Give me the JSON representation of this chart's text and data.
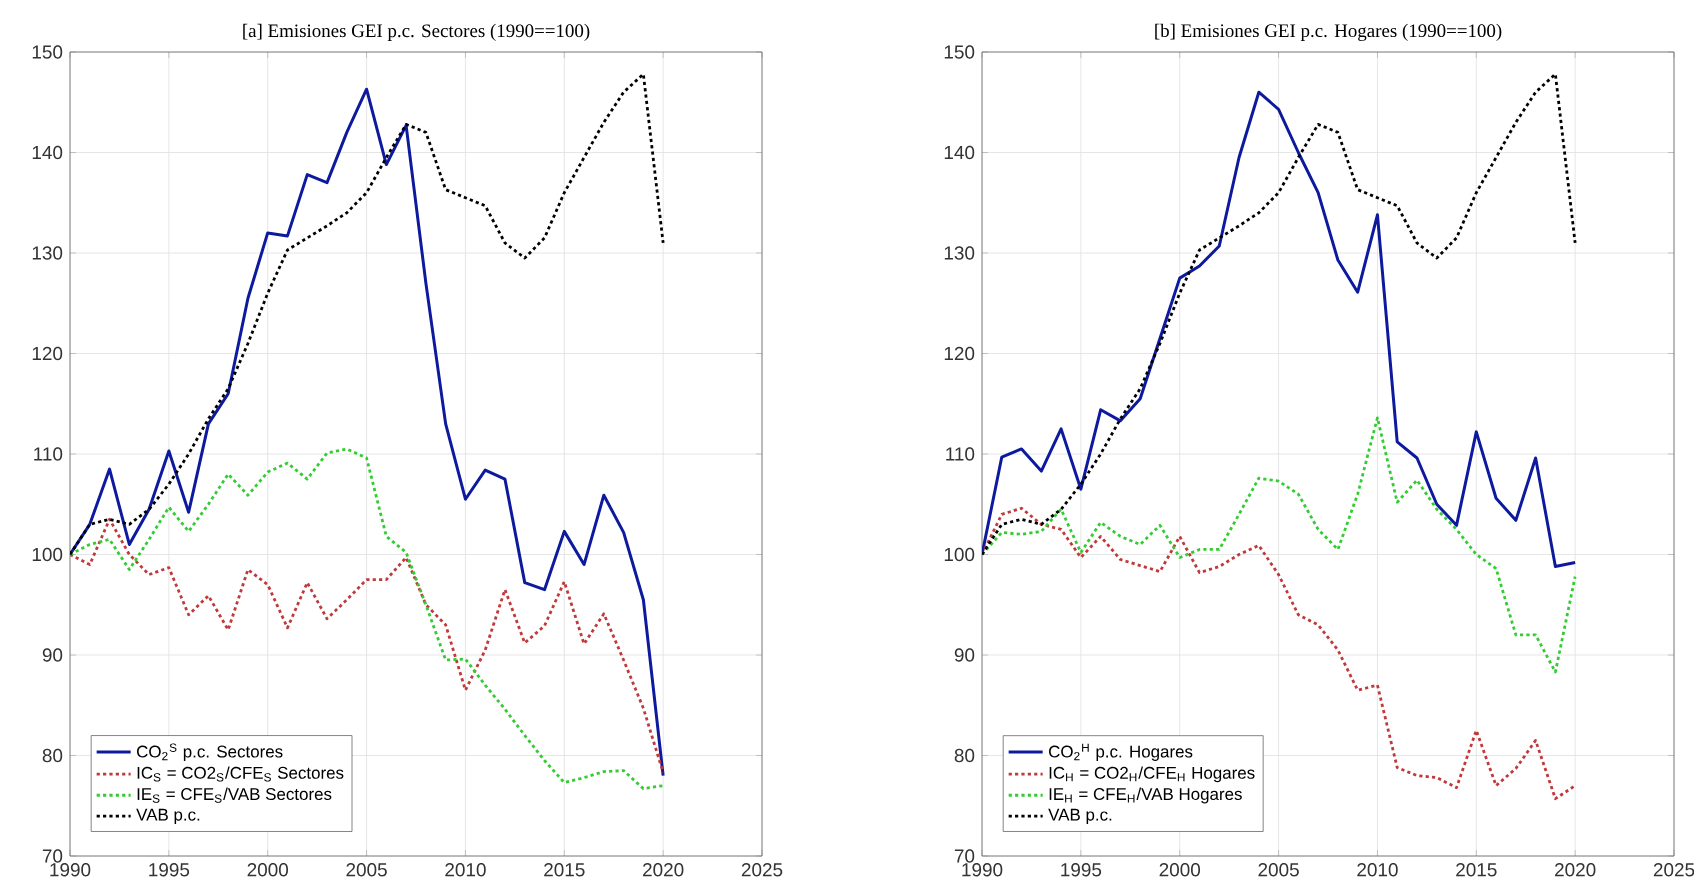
{
  "chart_data": [
    {
      "type": "line",
      "title": "[a] Emisiones GEI p.c. Sectores (1990==100)",
      "x": [
        1990,
        1991,
        1992,
        1993,
        1994,
        1995,
        1996,
        1997,
        1998,
        1999,
        2000,
        2001,
        2002,
        2003,
        2004,
        2005,
        2006,
        2007,
        2008,
        2009,
        2010,
        2011,
        2012,
        2013,
        2014,
        2015,
        2016,
        2017,
        2018,
        2019,
        2020
      ],
      "series": [
        {
          "name": "CO$_{2}$$^{S}$ p.c. Sectores",
          "color": "#0d1a9e",
          "line_style": "solid",
          "values": [
            100,
            103,
            108.5,
            101,
            104.5,
            110.3,
            104.2,
            113,
            116,
            125.5,
            132,
            131.7,
            137.8,
            137,
            142,
            146.3,
            138.8,
            142.7,
            127,
            113,
            105.5,
            108.4,
            107.5,
            97.2,
            96.5,
            102.3,
            99,
            105.9,
            102.2,
            95.5,
            78
          ]
        },
        {
          "name": "IC$_{S}$ = CO2$_{S}$/CFE$_{S}$ Sectores",
          "color": "#c0393b",
          "line_style": "dotted",
          "values": [
            100,
            99,
            103.5,
            100,
            98,
            98.7,
            94,
            95.9,
            92.5,
            98.5,
            97,
            92.7,
            97.2,
            93.6,
            95.5,
            97.5,
            97.5,
            99.7,
            95,
            93,
            86.5,
            90.5,
            96.5,
            91.2,
            92.9,
            97.3,
            91.1,
            94.1,
            89.5,
            84.7,
            78.3
          ]
        },
        {
          "name": "IE$_{S}$ = CFE$_{S}$/VAB Sectores",
          "color": "#33cc33",
          "line_style": "dotted",
          "values": [
            100,
            101,
            101.5,
            98.5,
            101.5,
            104.7,
            102.3,
            105,
            108,
            105.9,
            108.2,
            109.1,
            107.5,
            110.1,
            110.5,
            109.6,
            101.8,
            100.2,
            95,
            89.5,
            89.6,
            87,
            84.6,
            82,
            79.5,
            77.3,
            77.8,
            78.4,
            78.5,
            76.7,
            77
          ]
        },
        {
          "name": "VAB p.c.",
          "color": "#000000",
          "line_style": "dotted",
          "values": [
            100,
            103,
            103.5,
            103,
            104.5,
            107,
            110,
            113.5,
            116.5,
            121,
            126,
            130.3,
            131.5,
            132.7,
            134,
            136,
            139.5,
            142.8,
            142,
            136.3,
            135.5,
            134.7,
            131,
            129.5,
            131.5,
            136,
            139.5,
            143,
            146,
            147.8,
            131
          ]
        }
      ],
      "xlim": [
        1990,
        2025
      ],
      "xticks": [
        1990,
        1995,
        2000,
        2005,
        2010,
        2015,
        2020,
        2025
      ],
      "ylim": [
        70,
        150
      ],
      "yticks": [
        70,
        80,
        90,
        100,
        110,
        120,
        130,
        140,
        150
      ],
      "grid": true,
      "legend": "bottom left",
      "marker": "none"
    },
    {
      "type": "line",
      "title": "[b] Emisiones GEI p.c. Hogares (1990==100)",
      "x": [
        1990,
        1991,
        1992,
        1993,
        1994,
        1995,
        1996,
        1997,
        1998,
        1999,
        2000,
        2001,
        2002,
        2003,
        2004,
        2005,
        2006,
        2007,
        2008,
        2009,
        2010,
        2011,
        2012,
        2013,
        2014,
        2015,
        2016,
        2017,
        2018,
        2019,
        2020
      ],
      "series": [
        {
          "name": "CO$_{2}$$^{H}$ p.c. Hogares",
          "color": "#0d1a9e",
          "line_style": "solid",
          "values": [
            100,
            109.7,
            110.5,
            108.3,
            112.5,
            106.5,
            114.4,
            113.3,
            115.5,
            121.5,
            127.5,
            128.7,
            130.7,
            139.5,
            146,
            144.3,
            140,
            136,
            129.3,
            126.1,
            133.8,
            111.2,
            109.6,
            105,
            102.9,
            112.2,
            105.6,
            103.4,
            109.6,
            98.8,
            99.2
          ]
        },
        {
          "name": "IC$_{H}$ = CO2$_{H}$/CFE$_{H}$ Hogares",
          "color": "#c0393b",
          "line_style": "dotted",
          "values": [
            100,
            104,
            104.6,
            103,
            102.5,
            99.7,
            101.8,
            99.5,
            98.9,
            98.3,
            101.8,
            98.2,
            98.8,
            100,
            100.9,
            98,
            94,
            93,
            90.5,
            86.5,
            87,
            78.8,
            78,
            77.8,
            76.8,
            82.5,
            77,
            78.7,
            81.5,
            75.7,
            77
          ]
        },
        {
          "name": "IE$_{H}$ = CFE$_{H}$/VAB Hogares",
          "color": "#33cc33",
          "line_style": "dotted",
          "values": [
            100,
            102.2,
            102,
            102.3,
            104.5,
            100.2,
            103.2,
            101.8,
            101,
            102.9,
            99.7,
            100.5,
            100.5,
            104,
            107.6,
            107.3,
            106,
            102.5,
            100.5,
            106,
            113.6,
            105.2,
            107.4,
            104.5,
            102.5,
            100,
            98.6,
            92,
            92,
            88.3,
            97.8
          ]
        },
        {
          "name": "VAB p.c.",
          "color": "#000000",
          "line_style": "dotted",
          "values": [
            100,
            103,
            103.5,
            103,
            104.5,
            107,
            110,
            113.5,
            116.5,
            121,
            126,
            130.3,
            131.5,
            132.7,
            134,
            136,
            139.5,
            142.8,
            142,
            136.3,
            135.5,
            134.7,
            131,
            129.5,
            131.5,
            136,
            139.5,
            143,
            146,
            147.8,
            131
          ]
        }
      ],
      "xlim": [
        1990,
        2025
      ],
      "xticks": [
        1990,
        1995,
        2000,
        2005,
        2010,
        2015,
        2020,
        2025
      ],
      "ylim": [
        70,
        150
      ],
      "yticks": [
        70,
        80,
        90,
        100,
        110,
        120,
        130,
        140,
        150
      ],
      "grid": true,
      "legend": "bottom left",
      "marker": "none"
    }
  ]
}
